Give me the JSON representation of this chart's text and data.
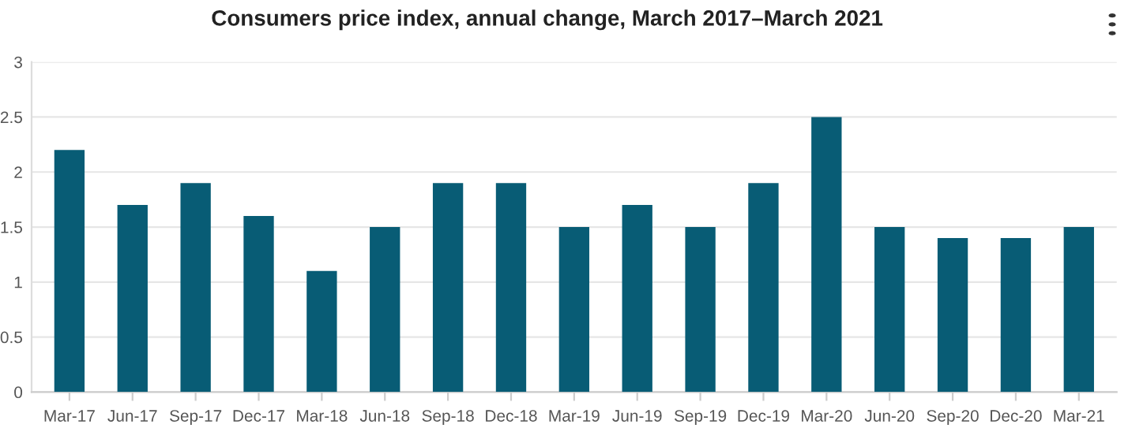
{
  "chart_data": {
    "type": "bar",
    "title": "Consumers price index, annual change, March 2017–March 2021",
    "categories": [
      "Mar-17",
      "Jun-17",
      "Sep-17",
      "Dec-17",
      "Mar-18",
      "Jun-18",
      "Sep-18",
      "Dec-18",
      "Mar-19",
      "Jun-19",
      "Sep-19",
      "Dec-19",
      "Mar-20",
      "Jun-20",
      "Sep-20",
      "Dec-20",
      "Mar-21"
    ],
    "values": [
      2.2,
      1.7,
      1.9,
      1.6,
      1.1,
      1.5,
      1.9,
      1.9,
      1.5,
      1.7,
      1.5,
      1.9,
      2.5,
      1.5,
      1.4,
      1.4,
      1.5
    ],
    "color": "#085c75",
    "ylim": [
      0,
      3
    ],
    "yticks": [
      0,
      0.5,
      1,
      1.5,
      2,
      2.5,
      3
    ],
    "grid": "y",
    "legend": false
  }
}
